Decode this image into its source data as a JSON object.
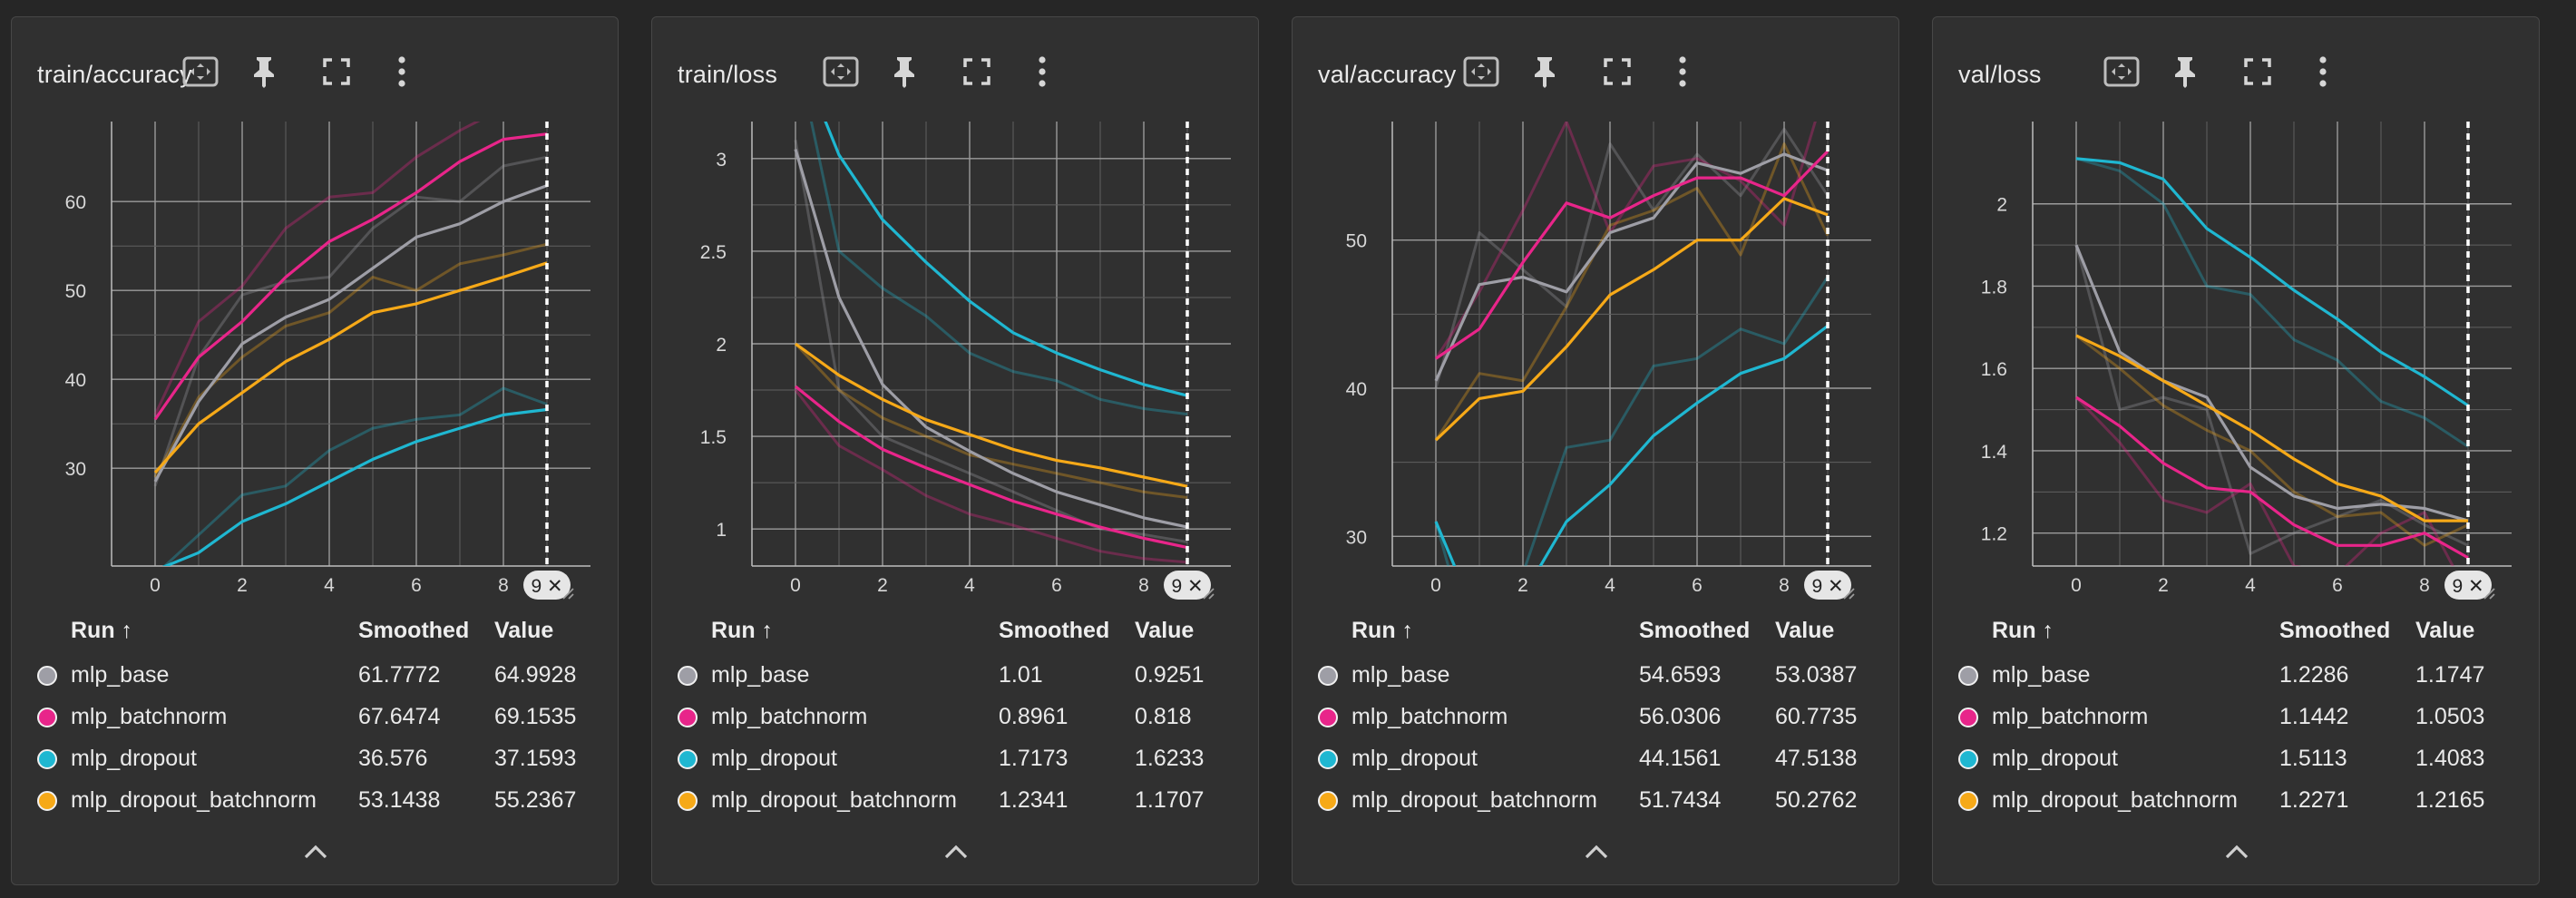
{
  "table_header": {
    "run": "Run ↑",
    "smoothed": "Smoothed",
    "value": "Value"
  },
  "runs": [
    {
      "name": "mlp_base",
      "color": "#9e9ea6"
    },
    {
      "name": "mlp_batchnorm",
      "color": "#e8258a"
    },
    {
      "name": "mlp_dropout",
      "color": "#1fb7d1"
    },
    {
      "name": "mlp_dropout_batchnorm",
      "color": "#f6a918"
    }
  ],
  "step_marker_label": "9 ✕",
  "icons": [
    "fit-domain-icon",
    "pin-icon",
    "fullscreen-icon",
    "more-vert-icon",
    "chevron-up-icon",
    "resize-handle-icon"
  ],
  "cards": [
    {
      "title": "train/accuracy",
      "table": [
        {
          "run": "mlp_base",
          "smoothed": "61.7772",
          "value": "64.9928"
        },
        {
          "run": "mlp_batchnorm",
          "smoothed": "67.6474",
          "value": "69.1535"
        },
        {
          "run": "mlp_dropout",
          "smoothed": "36.576",
          "value": "37.1593"
        },
        {
          "run": "mlp_dropout_batchnorm",
          "smoothed": "53.1438",
          "value": "55.2367"
        }
      ]
    },
    {
      "title": "train/loss",
      "table": [
        {
          "run": "mlp_base",
          "smoothed": "1.01",
          "value": "0.9251"
        },
        {
          "run": "mlp_batchnorm",
          "smoothed": "0.8961",
          "value": "0.818"
        },
        {
          "run": "mlp_dropout",
          "smoothed": "1.7173",
          "value": "1.6233"
        },
        {
          "run": "mlp_dropout_batchnorm",
          "smoothed": "1.2341",
          "value": "1.1707"
        }
      ]
    },
    {
      "title": "val/accuracy",
      "table": [
        {
          "run": "mlp_base",
          "smoothed": "54.6593",
          "value": "53.0387"
        },
        {
          "run": "mlp_batchnorm",
          "smoothed": "56.0306",
          "value": "60.7735"
        },
        {
          "run": "mlp_dropout",
          "smoothed": "44.1561",
          "value": "47.5138"
        },
        {
          "run": "mlp_dropout_batchnorm",
          "smoothed": "51.7434",
          "value": "50.2762"
        }
      ]
    },
    {
      "title": "val/loss",
      "table": [
        {
          "run": "mlp_base",
          "smoothed": "1.2286",
          "value": "1.1747"
        },
        {
          "run": "mlp_batchnorm",
          "smoothed": "1.1442",
          "value": "1.0503"
        },
        {
          "run": "mlp_dropout",
          "smoothed": "1.5113",
          "value": "1.4083"
        },
        {
          "run": "mlp_dropout_batchnorm",
          "smoothed": "1.2271",
          "value": "1.2165"
        }
      ]
    }
  ],
  "chart_data": [
    {
      "type": "line",
      "title": "train/accuracy",
      "x": [
        0,
        1,
        2,
        3,
        4,
        5,
        6,
        7,
        8,
        9
      ],
      "xticks": [
        "0",
        "2",
        "4",
        "6",
        "8"
      ],
      "xlim": [
        -1,
        10
      ],
      "ylim": [
        19,
        69
      ],
      "yticks": [
        "30",
        "40",
        "50",
        "60"
      ],
      "ytick_values": [
        30,
        40,
        50,
        60
      ],
      "grid": true,
      "step_marker": 9,
      "smoothed": [
        {
          "name": "mlp_base",
          "values": [
            28.5,
            37.5,
            44.0,
            47.0,
            49.0,
            52.5,
            56.0,
            57.5,
            60.0,
            61.8
          ]
        },
        {
          "name": "mlp_batchnorm",
          "values": [
            35.5,
            42.5,
            46.5,
            51.5,
            55.5,
            58.0,
            61.0,
            64.5,
            67.0,
            67.6
          ]
        },
        {
          "name": "mlp_dropout",
          "values": [
            18.5,
            20.5,
            24.0,
            26.0,
            28.5,
            31.0,
            33.0,
            34.5,
            36.0,
            36.6
          ]
        },
        {
          "name": "mlp_dropout_batchnorm",
          "values": [
            29.5,
            35.0,
            38.5,
            42.0,
            44.5,
            47.5,
            48.5,
            50.0,
            51.5,
            53.1
          ]
        }
      ],
      "raw": [
        {
          "name": "mlp_base",
          "values": [
            28.0,
            42.5,
            49.5,
            51.0,
            51.5,
            57.0,
            60.5,
            60.0,
            64.0,
            65.0
          ]
        },
        {
          "name": "mlp_batchnorm",
          "values": [
            36.0,
            46.5,
            50.5,
            57.0,
            60.5,
            61.0,
            65.0,
            68.0,
            70.5,
            69.2
          ]
        },
        {
          "name": "mlp_dropout",
          "values": [
            18.0,
            22.5,
            27.0,
            28.0,
            32.0,
            34.5,
            35.5,
            36.0,
            39.0,
            37.2
          ]
        },
        {
          "name": "mlp_dropout_batchnorm",
          "values": [
            29.0,
            38.0,
            42.5,
            46.0,
            47.5,
            51.5,
            50.0,
            53.0,
            54.0,
            55.2
          ]
        }
      ]
    },
    {
      "type": "line",
      "title": "train/loss",
      "x": [
        0,
        1,
        2,
        3,
        4,
        5,
        6,
        7,
        8,
        9
      ],
      "xticks": [
        "0",
        "2",
        "4",
        "6",
        "8"
      ],
      "xlim": [
        -1,
        10
      ],
      "ylim": [
        0.8,
        3.2
      ],
      "yticks": [
        "1",
        "1.5",
        "2",
        "2.5",
        "3"
      ],
      "ytick_values": [
        1,
        1.5,
        2,
        2.5,
        3
      ],
      "grid": true,
      "step_marker": 9,
      "smoothed": [
        {
          "name": "mlp_base",
          "values": [
            3.05,
            2.25,
            1.78,
            1.55,
            1.42,
            1.3,
            1.2,
            1.13,
            1.06,
            1.01
          ]
        },
        {
          "name": "mlp_batchnorm",
          "values": [
            1.77,
            1.58,
            1.43,
            1.33,
            1.24,
            1.15,
            1.08,
            1.01,
            0.95,
            0.9
          ]
        },
        {
          "name": "mlp_dropout",
          "values": [
            3.6,
            3.02,
            2.67,
            2.44,
            2.23,
            2.06,
            1.95,
            1.86,
            1.78,
            1.72
          ]
        },
        {
          "name": "mlp_dropout_batchnorm",
          "values": [
            2.0,
            1.83,
            1.7,
            1.59,
            1.51,
            1.43,
            1.37,
            1.33,
            1.28,
            1.23
          ]
        }
      ],
      "raw": [
        {
          "name": "mlp_base",
          "values": [
            3.1,
            1.75,
            1.5,
            1.4,
            1.3,
            1.2,
            1.1,
            1.0,
            0.97,
            0.93
          ]
        },
        {
          "name": "mlp_batchnorm",
          "values": [
            1.75,
            1.45,
            1.32,
            1.18,
            1.08,
            1.02,
            0.95,
            0.88,
            0.84,
            0.82
          ]
        },
        {
          "name": "mlp_dropout",
          "values": [
            3.6,
            2.5,
            2.3,
            2.15,
            1.95,
            1.85,
            1.8,
            1.7,
            1.65,
            1.62
          ]
        },
        {
          "name": "mlp_dropout_batchnorm",
          "values": [
            2.0,
            1.75,
            1.6,
            1.5,
            1.4,
            1.35,
            1.3,
            1.25,
            1.2,
            1.17
          ]
        }
      ]
    },
    {
      "type": "line",
      "title": "val/accuracy",
      "x": [
        0,
        1,
        2,
        3,
        4,
        5,
        6,
        7,
        8,
        9
      ],
      "xticks": [
        "0",
        "2",
        "4",
        "6",
        "8"
      ],
      "xlim": [
        -1,
        10
      ],
      "ylim": [
        28,
        58
      ],
      "yticks": [
        "30",
        "40",
        "50"
      ],
      "ytick_values": [
        30,
        40,
        50
      ],
      "grid": true,
      "step_marker": 9,
      "smoothed": [
        {
          "name": "mlp_base",
          "values": [
            40.5,
            47.0,
            47.5,
            46.5,
            50.5,
            51.5,
            55.2,
            54.5,
            55.8,
            54.7
          ]
        },
        {
          "name": "mlp_batchnorm",
          "values": [
            42.0,
            44.0,
            48.5,
            52.5,
            51.5,
            53.0,
            54.2,
            54.2,
            53.0,
            56.0
          ]
        },
        {
          "name": "mlp_dropout",
          "values": [
            31.0,
            24.0,
            26.0,
            31.0,
            33.5,
            36.8,
            39.0,
            41.0,
            42.0,
            44.2
          ]
        },
        {
          "name": "mlp_dropout_batchnorm",
          "values": [
            36.5,
            39.3,
            39.8,
            42.8,
            46.3,
            48.0,
            50.0,
            50.0,
            52.8,
            51.7
          ]
        }
      ],
      "raw": [
        {
          "name": "mlp_base",
          "values": [
            40.0,
            50.5,
            48.0,
            45.5,
            56.5,
            52.0,
            55.8,
            53.0,
            57.5,
            53.0
          ]
        },
        {
          "name": "mlp_batchnorm",
          "values": [
            42.0,
            46.5,
            52.0,
            58.0,
            50.5,
            55.0,
            55.5,
            54.0,
            51.0,
            60.8
          ]
        },
        {
          "name": "mlp_dropout",
          "values": [
            31.0,
            20.5,
            27.5,
            36.0,
            36.5,
            41.5,
            42.0,
            44.0,
            43.0,
            47.5
          ]
        },
        {
          "name": "mlp_dropout_batchnorm",
          "values": [
            36.5,
            41.0,
            40.5,
            45.5,
            51.0,
            52.0,
            53.5,
            49.0,
            56.5,
            50.3
          ]
        }
      ]
    },
    {
      "type": "line",
      "title": "val/loss",
      "x": [
        0,
        1,
        2,
        3,
        4,
        5,
        6,
        7,
        8,
        9
      ],
      "xticks": [
        "0",
        "2",
        "4",
        "6",
        "8"
      ],
      "xlim": [
        -1,
        10
      ],
      "ylim": [
        1.12,
        2.2
      ],
      "yticks": [
        "1.2",
        "1.4",
        "1.6",
        "1.8",
        "2"
      ],
      "ytick_values": [
        1.2,
        1.4,
        1.6,
        1.8,
        2
      ],
      "grid": true,
      "step_marker": 9,
      "smoothed": [
        {
          "name": "mlp_base",
          "values": [
            1.9,
            1.64,
            1.57,
            1.53,
            1.36,
            1.29,
            1.26,
            1.27,
            1.26,
            1.23
          ]
        },
        {
          "name": "mlp_batchnorm",
          "values": [
            1.53,
            1.46,
            1.37,
            1.31,
            1.3,
            1.22,
            1.17,
            1.17,
            1.2,
            1.14
          ]
        },
        {
          "name": "mlp_dropout",
          "values": [
            2.11,
            2.1,
            2.06,
            1.94,
            1.87,
            1.79,
            1.72,
            1.64,
            1.58,
            1.51
          ]
        },
        {
          "name": "mlp_dropout_batchnorm",
          "values": [
            1.68,
            1.63,
            1.57,
            1.51,
            1.45,
            1.38,
            1.32,
            1.29,
            1.23,
            1.23
          ]
        }
      ],
      "raw": [
        {
          "name": "mlp_base",
          "values": [
            1.9,
            1.5,
            1.53,
            1.5,
            1.15,
            1.2,
            1.24,
            1.28,
            1.22,
            1.17
          ]
        },
        {
          "name": "mlp_batchnorm",
          "values": [
            1.53,
            1.42,
            1.28,
            1.25,
            1.32,
            1.12,
            1.1,
            1.2,
            1.25,
            1.05
          ]
        },
        {
          "name": "mlp_dropout",
          "values": [
            2.11,
            2.08,
            2.0,
            1.8,
            1.78,
            1.67,
            1.62,
            1.52,
            1.48,
            1.41
          ]
        },
        {
          "name": "mlp_dropout_batchnorm",
          "values": [
            1.68,
            1.6,
            1.51,
            1.45,
            1.4,
            1.3,
            1.24,
            1.25,
            1.17,
            1.22
          ]
        }
      ]
    }
  ]
}
